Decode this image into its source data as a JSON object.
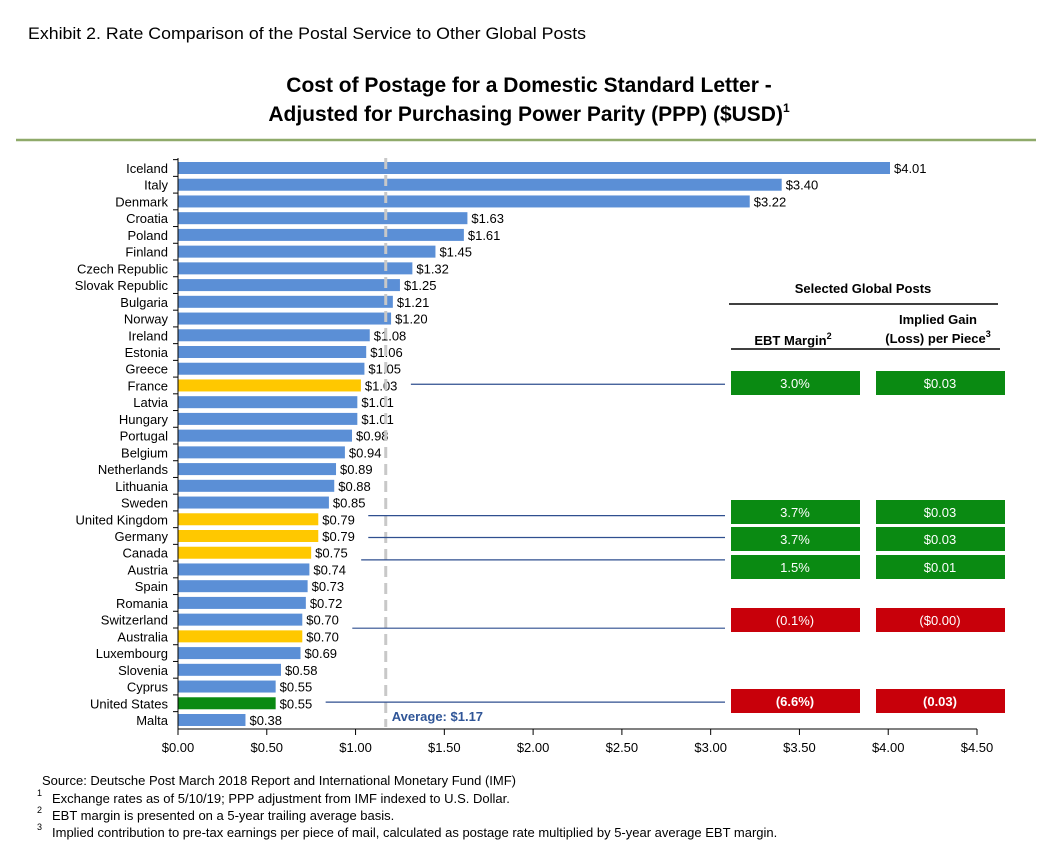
{
  "exhibit_title": "Exhibit 2. Rate Comparison of the Postal Service to Other Global Posts",
  "chart_data": {
    "type": "bar",
    "orientation": "horizontal",
    "title_line1": "Cost of Postage for a Domestic Standard Letter -",
    "title_line2": "Adjusted for Purchasing Power Parity (PPP) ($USD)",
    "title_superscript": "1",
    "categories": [
      "Iceland",
      "Italy",
      "Denmark",
      "Croatia",
      "Poland",
      "Finland",
      "Czech Republic",
      "Slovak Republic",
      "Bulgaria",
      "Norway",
      "Ireland",
      "Estonia",
      "Greece",
      "France",
      "Latvia",
      "Hungary",
      "Portugal",
      "Belgium",
      "Netherlands",
      "Lithuania",
      "Sweden",
      "United Kingdom",
      "Germany",
      "Canada",
      "Austria",
      "Spain",
      "Romania",
      "Switzerland",
      "Australia",
      "Luxembourg",
      "Slovenia",
      "Cyprus",
      "United States",
      "Malta"
    ],
    "values": [
      4.01,
      3.4,
      3.22,
      1.63,
      1.61,
      1.45,
      1.32,
      1.25,
      1.21,
      1.2,
      1.08,
      1.06,
      1.05,
      1.03,
      1.01,
      1.01,
      0.98,
      0.94,
      0.89,
      0.88,
      0.85,
      0.79,
      0.79,
      0.75,
      0.74,
      0.73,
      0.72,
      0.7,
      0.7,
      0.69,
      0.58,
      0.55,
      0.55,
      0.38
    ],
    "data_labels": [
      "$4.01",
      "$3.40",
      "$3.22",
      "$1.63",
      "$1.61",
      "$1.45",
      "$1.32",
      "$1.25",
      "$1.21",
      "$1.20",
      "$1.08",
      "$1.06",
      "$1.05",
      "$1.03",
      "$1.01",
      "$1.01",
      "$0.98",
      "$0.94",
      "$0.89",
      "$0.88",
      "$0.85",
      "$0.79",
      "$0.79",
      "$0.75",
      "$0.74",
      "$0.73",
      "$0.72",
      "$0.70",
      "$0.70",
      "$0.69",
      "$0.58",
      "$0.55",
      "$0.55",
      "$0.38"
    ],
    "highlighted": {
      "France": "yellow",
      "United Kingdom": "yellow",
      "Germany": "yellow",
      "Canada": "yellow",
      "Australia": "yellow",
      "United States": "green"
    },
    "xlim": [
      0,
      4.5
    ],
    "xticks": [
      0,
      0.5,
      1,
      1.5,
      2,
      2.5,
      3,
      3.5,
      4,
      4.5
    ],
    "xtick_labels": [
      "$0.00",
      "$0.50",
      "$1.00",
      "$1.50",
      "$2.00",
      "$2.50",
      "$3.00",
      "$3.50",
      "$4.00",
      "$4.50"
    ],
    "average": {
      "value": 1.17,
      "label": "Average: $1.17"
    },
    "grid": false,
    "colors": {
      "default": "#5b8fd6",
      "yellow": "#ffc800",
      "green": "#0a8a12",
      "average": "#c8c8c8",
      "average_label": "#2f5597"
    }
  },
  "table": {
    "title": "Selected Global Posts",
    "col1_header": "EBT Margin",
    "col1_sup": "2",
    "col2_header_line1": "Implied Gain",
    "col2_header_line2": "(Loss) per Piece",
    "col2_sup": "3",
    "rows": [
      {
        "country": "France",
        "margin": "3.0%",
        "gain": "$0.03",
        "status": "positive"
      },
      {
        "country": "United Kingdom",
        "margin": "3.7%",
        "gain": "$0.03",
        "status": "positive"
      },
      {
        "country": "Germany",
        "margin": "3.7%",
        "gain": "$0.03",
        "status": "positive"
      },
      {
        "country": "Canada",
        "margin": "1.5%",
        "gain": "$0.01",
        "status": "positive"
      },
      {
        "country": "Australia",
        "margin": "(0.1%)",
        "gain": "($0.00)",
        "status": "negative"
      },
      {
        "country": "United States",
        "margin": "(6.6%)",
        "gain": "(0.03)",
        "status": "negative"
      }
    ],
    "colors": {
      "positive": "#0a8a12",
      "negative": "#c8000a"
    }
  },
  "footnotes": {
    "source": "Source: Deutsche Post March 2018 Report and International Monetary Fund (IMF)",
    "notes": [
      {
        "sup": "1",
        "text": "Exchange rates as of 5/10/19; PPP adjustment from IMF indexed to U.S. Dollar."
      },
      {
        "sup": "2",
        "text": "EBT margin is presented on a 5-year trailing average basis."
      },
      {
        "sup": "3",
        "text": "Implied contribution to pre-tax earnings per piece of mail, calculated as postage rate multiplied by 5-year average EBT margin."
      }
    ]
  }
}
